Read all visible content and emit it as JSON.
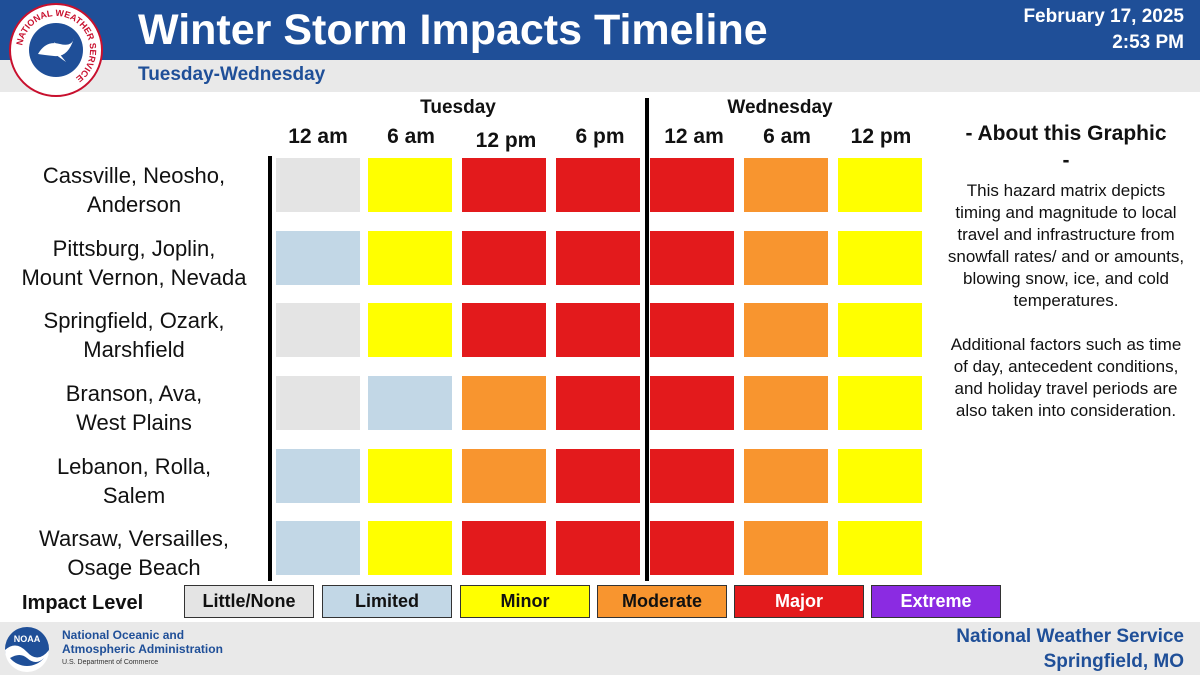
{
  "header": {
    "title": "Winter Storm Impacts Timeline",
    "subtitle": "Tuesday-Wednesday",
    "date": "February 17, 2025",
    "time": "2:53 PM",
    "logo_text": "NATIONAL WEATHER SERVICE",
    "header_color": "#1f4f98"
  },
  "days": [
    "Tuesday",
    "Wednesday"
  ],
  "times": [
    "12 am",
    "6 am",
    "12 pm",
    "6 pm",
    "12 am",
    "6 am",
    "12 pm"
  ],
  "impact_colors": {
    "Little/None": "#e4e4e4",
    "Limited": "#c2d7e6",
    "Minor": "#ffff00",
    "Moderate": "#f8952f",
    "Major": "#e31a1c",
    "Extreme": "#8b2be2"
  },
  "rows": [
    {
      "label": [
        "Cassville, Neosho,",
        "Anderson"
      ],
      "impacts": [
        "Little/None",
        "Minor",
        "Major",
        "Major",
        "Major",
        "Moderate",
        "Minor"
      ]
    },
    {
      "label": [
        "Pittsburg, Joplin,",
        "Mount Vernon, Nevada"
      ],
      "impacts": [
        "Limited",
        "Minor",
        "Major",
        "Major",
        "Major",
        "Moderate",
        "Minor"
      ]
    },
    {
      "label": [
        "Springfield, Ozark,",
        "Marshfield"
      ],
      "impacts": [
        "Little/None",
        "Minor",
        "Major",
        "Major",
        "Major",
        "Moderate",
        "Minor"
      ]
    },
    {
      "label": [
        "Branson, Ava,",
        "West Plains"
      ],
      "impacts": [
        "Little/None",
        "Limited",
        "Moderate",
        "Major",
        "Major",
        "Moderate",
        "Minor"
      ]
    },
    {
      "label": [
        "Lebanon, Rolla,",
        "Salem"
      ],
      "impacts": [
        "Limited",
        "Minor",
        "Moderate",
        "Major",
        "Major",
        "Moderate",
        "Minor"
      ]
    },
    {
      "label": [
        "Warsaw, Versailles,",
        "Osage Beach"
      ],
      "impacts": [
        "Limited",
        "Minor",
        "Major",
        "Major",
        "Major",
        "Moderate",
        "Minor"
      ]
    }
  ],
  "about": {
    "title_line1": "- About this Graphic",
    "title_line2": "-",
    "paragraph1": "This hazard matrix depicts timing and magnitude to local travel and infrastructure from snowfall rates/ and or amounts, blowing snow, ice, and cold temperatures.",
    "paragraph2": "Additional factors such as time of day, antecedent conditions, and holiday travel periods are also taken into consideration."
  },
  "legend": {
    "label": "Impact Level",
    "items": [
      {
        "name": "Little/None",
        "text_color": "#111111"
      },
      {
        "name": "Limited",
        "text_color": "#111111"
      },
      {
        "name": "Minor",
        "text_color": "#111111"
      },
      {
        "name": "Moderate",
        "text_color": "#111111"
      },
      {
        "name": "Major",
        "text_color": "#ffffff"
      },
      {
        "name": "Extreme",
        "text_color": "#ffffff"
      }
    ]
  },
  "footer": {
    "noaa_line1": "National Oceanic and",
    "noaa_line2": "Atmospheric Administration",
    "noaa_dept": "U.S. Department of Commerce",
    "office_line1": "National Weather Service",
    "office_line2": "Springfield, MO"
  }
}
